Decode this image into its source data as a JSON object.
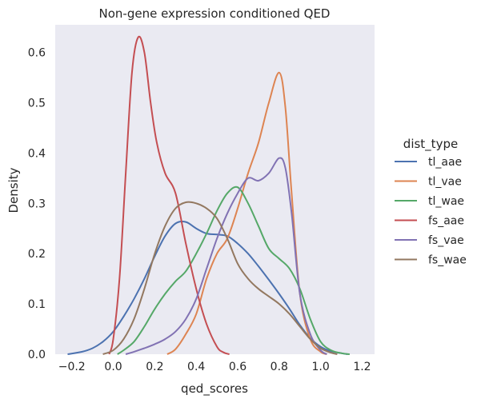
{
  "chart_data": {
    "type": "line",
    "title": "Non-gene expression conditioned  QED",
    "xlabel": "qed_scores",
    "ylabel": "Density",
    "xlim": [
      -0.28,
      1.26
    ],
    "ylim": [
      0,
      0.655
    ],
    "x_ticks": [
      "−0.2",
      "0.0",
      "0.2",
      "0.4",
      "0.6",
      "0.8",
      "1.0",
      "1.2"
    ],
    "x_tick_values": [
      -0.2,
      0.0,
      0.2,
      0.4,
      0.6,
      0.8,
      1.0,
      1.2
    ],
    "y_ticks": [
      "0.0",
      "0.1",
      "0.2",
      "0.3",
      "0.4",
      "0.5",
      "0.6"
    ],
    "y_tick_values": [
      0.0,
      0.1,
      0.2,
      0.3,
      0.4,
      0.5,
      0.6
    ],
    "grid": false,
    "background": "#eaeaf2",
    "legend_title": "dist_type",
    "legend_position": "right",
    "series": [
      {
        "name": "tl_aae",
        "color": "#4c72b0",
        "x": [
          -0.22,
          -0.15,
          -0.1,
          -0.05,
          0.0,
          0.05,
          0.1,
          0.15,
          0.2,
          0.25,
          0.3,
          0.35,
          0.4,
          0.45,
          0.5,
          0.55,
          0.6,
          0.65,
          0.7,
          0.75,
          0.8,
          0.85,
          0.9,
          0.95,
          1.0,
          1.05,
          1.1,
          1.13
        ],
        "y": [
          0.0,
          0.005,
          0.012,
          0.025,
          0.045,
          0.075,
          0.11,
          0.15,
          0.195,
          0.235,
          0.26,
          0.263,
          0.25,
          0.24,
          0.238,
          0.235,
          0.22,
          0.2,
          0.175,
          0.148,
          0.12,
          0.09,
          0.058,
          0.032,
          0.015,
          0.006,
          0.002,
          0.0
        ]
      },
      {
        "name": "tl_vae",
        "color": "#dd8452",
        "x": [
          0.26,
          0.3,
          0.35,
          0.4,
          0.45,
          0.5,
          0.55,
          0.6,
          0.65,
          0.7,
          0.75,
          0.8,
          0.83,
          0.86,
          0.9,
          0.95,
          1.0,
          1.03
        ],
        "y": [
          0.0,
          0.01,
          0.04,
          0.08,
          0.15,
          0.2,
          0.23,
          0.29,
          0.36,
          0.42,
          0.5,
          0.56,
          0.49,
          0.32,
          0.12,
          0.03,
          0.005,
          0.0
        ]
      },
      {
        "name": "tl_wae",
        "color": "#55a868",
        "x": [
          0.02,
          0.05,
          0.1,
          0.15,
          0.2,
          0.25,
          0.3,
          0.35,
          0.4,
          0.45,
          0.5,
          0.55,
          0.6,
          0.65,
          0.7,
          0.75,
          0.8,
          0.85,
          0.9,
          0.95,
          1.0,
          1.05,
          1.1,
          1.14
        ],
        "y": [
          0.0,
          0.008,
          0.025,
          0.055,
          0.09,
          0.12,
          0.145,
          0.165,
          0.2,
          0.24,
          0.285,
          0.32,
          0.332,
          0.3,
          0.255,
          0.21,
          0.19,
          0.17,
          0.13,
          0.07,
          0.025,
          0.008,
          0.002,
          0.0
        ]
      },
      {
        "name": "fs_aae",
        "color": "#c44e52",
        "x": [
          -0.02,
          0.0,
          0.03,
          0.06,
          0.09,
          0.12,
          0.15,
          0.18,
          0.21,
          0.25,
          0.3,
          0.35,
          0.4,
          0.45,
          0.5,
          0.53,
          0.56
        ],
        "y": [
          0.0,
          0.03,
          0.15,
          0.36,
          0.56,
          0.63,
          0.6,
          0.5,
          0.42,
          0.36,
          0.32,
          0.22,
          0.13,
          0.06,
          0.015,
          0.004,
          0.0
        ]
      },
      {
        "name": "fs_vae",
        "color": "#8172b3",
        "x": [
          0.06,
          0.1,
          0.15,
          0.2,
          0.25,
          0.3,
          0.35,
          0.4,
          0.45,
          0.5,
          0.55,
          0.6,
          0.65,
          0.7,
          0.75,
          0.8,
          0.83,
          0.86,
          0.9,
          0.95,
          1.0,
          1.03
        ],
        "y": [
          0.0,
          0.005,
          0.012,
          0.02,
          0.03,
          0.045,
          0.07,
          0.11,
          0.17,
          0.23,
          0.28,
          0.32,
          0.35,
          0.345,
          0.36,
          0.39,
          0.37,
          0.28,
          0.12,
          0.04,
          0.008,
          0.0
        ]
      },
      {
        "name": "fs_wae",
        "color": "#937860",
        "x": [
          -0.05,
          0.0,
          0.05,
          0.1,
          0.15,
          0.2,
          0.25,
          0.3,
          0.35,
          0.4,
          0.45,
          0.5,
          0.55,
          0.6,
          0.65,
          0.7,
          0.75,
          0.8,
          0.85,
          0.9,
          0.95,
          1.0,
          1.05,
          1.08
        ],
        "y": [
          0.0,
          0.008,
          0.03,
          0.07,
          0.13,
          0.2,
          0.255,
          0.29,
          0.302,
          0.3,
          0.29,
          0.27,
          0.23,
          0.18,
          0.15,
          0.13,
          0.115,
          0.1,
          0.08,
          0.055,
          0.03,
          0.012,
          0.003,
          0.0
        ]
      }
    ]
  }
}
